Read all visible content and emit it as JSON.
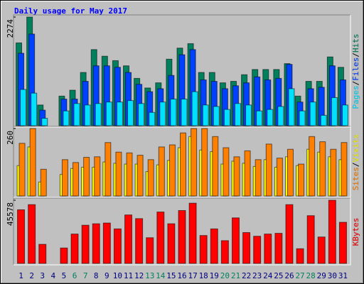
{
  "title": "Daily usage for May 2017",
  "chart_data": [
    {
      "type": "bar",
      "ylim": [
        0,
        2274
      ],
      "yticks": [
        2274
      ],
      "legend_separator": "/",
      "series": [
        {
          "name": "Hits",
          "color": "#00805c",
          "values": [
            1733,
            2274,
            433,
            0,
            619,
            743,
            1114,
            1593,
            1454,
            1361,
            1253,
            990,
            789,
            897,
            1392,
            1624,
            1717,
            1114,
            1114,
            897,
            928,
            1067,
            1176,
            1176,
            1176,
            1299,
            619,
            928,
            928,
            1439,
            1222
          ]
        },
        {
          "name": "Files",
          "color": "#0040ff",
          "values": [
            1516,
            1918,
            325,
            0,
            557,
            557,
            928,
            1253,
            1253,
            1222,
            1114,
            866,
            712,
            774,
            1052,
            1485,
            1593,
            959,
            928,
            774,
            835,
            897,
            1021,
            959,
            990,
            1284,
            495,
            774,
            804,
            1253,
            959
          ]
        },
        {
          "name": "Pages",
          "color": "#00e0ff",
          "values": [
            758,
            681,
            155,
            0,
            309,
            464,
            433,
            464,
            495,
            495,
            526,
            464,
            278,
            495,
            557,
            557,
            712,
            433,
            402,
            340,
            464,
            433,
            309,
            340,
            402,
            774,
            309,
            495,
            217,
            588,
            433
          ]
        }
      ]
    },
    {
      "type": "bar",
      "ylim": [
        0,
        260
      ],
      "yticks": [
        260
      ],
      "legend_separator": "/",
      "series": [
        {
          "name": "Visits",
          "color": "#ffff00",
          "values": [
            117,
            189,
            54,
            0,
            83,
            106,
            111,
            111,
            131,
            126,
            123,
            123,
            94,
            120,
            137,
            186,
            229,
            177,
            171,
            123,
            134,
            126,
            114,
            140,
            111,
            151,
            117,
            180,
            169,
            151,
            140
          ]
        },
        {
          "name": "Sites",
          "color": "#ff8000",
          "values": [
            203,
            260,
            103,
            0,
            140,
            129,
            149,
            151,
            206,
            169,
            166,
            157,
            140,
            189,
            197,
            243,
            260,
            260,
            229,
            186,
            151,
            174,
            140,
            200,
            146,
            180,
            123,
            229,
            209,
            180,
            206
          ]
        }
      ]
    },
    {
      "type": "bar",
      "ylim": [
        0,
        45578
      ],
      "yticks": [
        45578
      ],
      "categories": [
        "1",
        "2",
        "3",
        "4",
        "5",
        "6",
        "7",
        "8",
        "9",
        "10",
        "11",
        "12",
        "13",
        "14",
        "15",
        "16",
        "17",
        "18",
        "19",
        "20",
        "21",
        "22",
        "23",
        "24",
        "25",
        "26",
        "27",
        "28",
        "29",
        "30",
        "31"
      ],
      "category_colors": [
        "#000080",
        "#000080",
        "#000080",
        "#000080",
        "#000080",
        "#00805c",
        "#00805c",
        "#000080",
        "#000080",
        "#000080",
        "#000080",
        "#000080",
        "#00805c",
        "#00805c",
        "#000080",
        "#000080",
        "#000080",
        "#000080",
        "#000080",
        "#00805c",
        "#00805c",
        "#000080",
        "#000080",
        "#000080",
        "#000080",
        "#000080",
        "#00805c",
        "#00805c",
        "#000080",
        "#000080",
        "#000080"
      ],
      "series": [
        {
          "name": "KBytes",
          "color": "#ff0000",
          "values": [
            38690,
            42400,
            13780,
            0,
            11130,
            21200,
            27560,
            28620,
            29150,
            24910,
            34980,
            32330,
            18550,
            37100,
            28620,
            38160,
            43460,
            20140,
            24910,
            16430,
            32860,
            22260,
            19610,
            21200,
            21730,
            42400,
            10600,
            34450,
            19080,
            45578,
            29680
          ]
        }
      ]
    }
  ]
}
